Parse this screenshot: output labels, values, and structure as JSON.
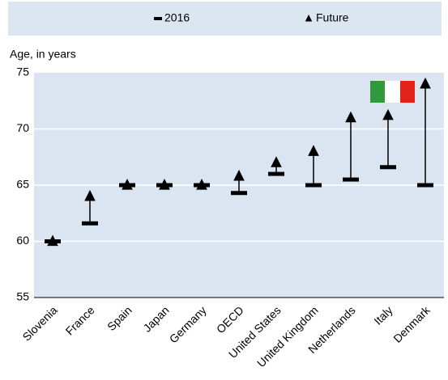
{
  "chart_data": {
    "type": "dumbbell",
    "y_axis_label": "Age, in years",
    "categories": [
      "Slovenia",
      "France",
      "Spain",
      "Japan",
      "Germany",
      "OECD",
      "United States",
      "United Kingdom",
      "Netherlands",
      "Italy",
      "Denmark"
    ],
    "series": [
      {
        "name": "2016",
        "color": "#000000",
        "values": [
          60,
          61.6,
          65,
          65,
          65,
          64.3,
          66,
          65,
          65.5,
          66.6,
          65
        ]
      },
      {
        "name": "Future",
        "color": "#000000",
        "values": [
          60,
          64,
          65,
          65,
          65,
          65.8,
          67,
          68,
          71,
          71.2,
          74
        ]
      }
    ],
    "ylim": [
      55,
      75
    ],
    "yticks": [
      55,
      60,
      65,
      70,
      75
    ],
    "grid": true,
    "legend": "top"
  }
}
